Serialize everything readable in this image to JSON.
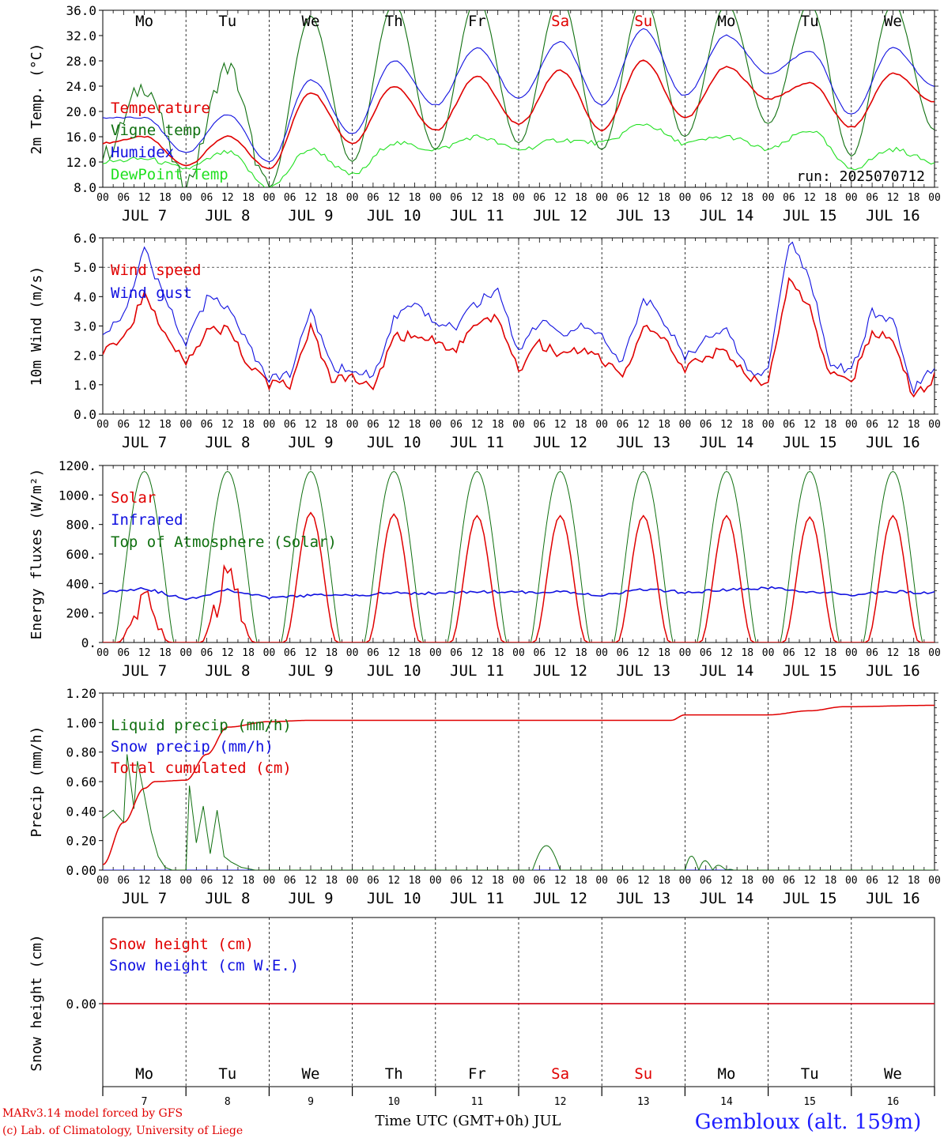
{
  "colors": {
    "red": "#e00000",
    "green": "#107010",
    "blue": "#1010e0",
    "lightgreen": "#20e020",
    "station": "#1e1eff"
  },
  "days": [
    {
      "abbr": "Mo",
      "date": "7",
      "weekend": false
    },
    {
      "abbr": "Tu",
      "date": "8",
      "weekend": false
    },
    {
      "abbr": "We",
      "date": "9",
      "weekend": false
    },
    {
      "abbr": "Th",
      "date": "10",
      "weekend": false
    },
    {
      "abbr": "Fr",
      "date": "11",
      "weekend": false
    },
    {
      "abbr": "Sa",
      "date": "12",
      "weekend": true
    },
    {
      "abbr": "Su",
      "date": "13",
      "weekend": true
    },
    {
      "abbr": "Mo",
      "date": "14",
      "weekend": false
    },
    {
      "abbr": "Tu",
      "date": "15",
      "weekend": false
    },
    {
      "abbr": "We",
      "date": "16",
      "weekend": false
    }
  ],
  "month": "JUL",
  "hour_ticks": [
    "00",
    "06",
    "12",
    "18"
  ],
  "x_title": "Time UTC (GMT+0h) JUL",
  "station": "Gembloux (alt. 159m)",
  "footer": [
    "MARv3.14 model forced by GFS",
    "(c) Lab. of Climatology, University of Liege"
  ],
  "chart_data": [
    {
      "type": "line",
      "ylabel": "2m Temp. (°C)",
      "ylim": [
        8,
        36
      ],
      "yticks": [
        "8.0",
        "12.0",
        "16.0",
        "20.0",
        "24.0",
        "28.0",
        "32.0",
        "36.0"
      ],
      "run_label": "run: 2025070712",
      "x_hours": [
        0,
        12,
        24,
        36,
        48,
        60,
        72,
        84,
        96,
        108,
        120,
        132,
        144,
        156,
        168,
        180,
        192,
        204,
        216,
        228,
        240
      ],
      "series": [
        {
          "name": "Temperature",
          "color": "red",
          "values": [
            15.0,
            16.0,
            11.5,
            16.0,
            11.0,
            23.0,
            15.0,
            24.0,
            17.0,
            25.5,
            18.0,
            26.5,
            17.0,
            28.0,
            19.0,
            27.0,
            22.0,
            24.5,
            17.5,
            26.0,
            21.5
          ]
        },
        {
          "name": "Vigne temp",
          "color": "green",
          "values": [
            13.0,
            24.0,
            9.0,
            27.0,
            8.0,
            35.0,
            12.0,
            37.0,
            14.0,
            38.0,
            15.0,
            38.0,
            14.0,
            38.0,
            16.0,
            37.0,
            18.0,
            37.0,
            13.0,
            37.0,
            17.0
          ]
        },
        {
          "name": "Humidex",
          "color": "blue",
          "values": [
            19.0,
            19.0,
            13.5,
            19.5,
            12.0,
            25.0,
            16.5,
            28.0,
            21.0,
            30.0,
            22.0,
            31.0,
            21.0,
            33.0,
            22.5,
            32.0,
            26.0,
            29.5,
            19.5,
            30.0,
            24.0
          ]
        },
        {
          "name": "DewPoint Temp",
          "color": "lightgreen",
          "values": [
            12.0,
            12.5,
            11.0,
            13.5,
            8.0,
            14.0,
            10.0,
            15.0,
            14.0,
            16.0,
            14.0,
            15.5,
            15.0,
            18.0,
            15.0,
            16.0,
            14.0,
            17.0,
            11.0,
            14.0,
            12.0
          ]
        }
      ]
    },
    {
      "type": "line",
      "ylabel": "10m Wind (m/s)",
      "ylim": [
        0,
        6
      ],
      "yticks": [
        "0.0",
        "1.0",
        "2.0",
        "3.0",
        "4.0",
        "5.0",
        "6.0"
      ],
      "ref_line": 5.0,
      "x_hours": [
        0,
        6,
        12,
        18,
        24,
        30,
        36,
        42,
        48,
        54,
        60,
        66,
        72,
        78,
        84,
        90,
        96,
        102,
        108,
        114,
        120,
        126,
        132,
        138,
        144,
        150,
        156,
        162,
        168,
        174,
        180,
        186,
        192,
        198,
        204,
        210,
        216,
        222,
        228,
        234,
        240
      ],
      "series": [
        {
          "name": "Wind speed",
          "color": "red",
          "values": [
            2.2,
            2.6,
            4.0,
            2.8,
            1.8,
            2.8,
            2.9,
            1.7,
            1.0,
            1.0,
            2.9,
            1.2,
            1.2,
            0.9,
            2.6,
            2.7,
            2.5,
            2.2,
            3.0,
            3.3,
            1.5,
            2.4,
            2.0,
            2.2,
            1.9,
            1.2,
            3.0,
            2.5,
            1.5,
            2.0,
            2.2,
            1.2,
            1.1,
            4.5,
            3.6,
            1.3,
            1.1,
            2.8,
            2.6,
            0.5,
            1.3
          ]
        },
        {
          "name": "Wind gust",
          "color": "blue",
          "values": [
            2.8,
            3.4,
            5.6,
            3.9,
            2.4,
            3.9,
            3.7,
            2.3,
            1.2,
            1.3,
            3.6,
            1.6,
            1.5,
            1.3,
            3.2,
            3.7,
            3.1,
            3.0,
            3.8,
            4.2,
            2.1,
            3.2,
            2.7,
            3.0,
            2.6,
            1.7,
            4.0,
            3.2,
            1.9,
            2.6,
            2.8,
            1.5,
            1.4,
            5.9,
            4.7,
            1.7,
            1.4,
            3.5,
            3.2,
            0.8,
            1.7
          ]
        }
      ]
    },
    {
      "type": "line",
      "ylabel": "Energy fluxes (W/m²)",
      "ylim": [
        0,
        1200
      ],
      "yticks": [
        "0.",
        "200.",
        "400.",
        "600.",
        "800.",
        "1000.",
        "1200."
      ],
      "solar_peaks": [
        420,
        650,
        880,
        870,
        860,
        860,
        860,
        860,
        850,
        860
      ],
      "toa_peak": 1160,
      "series": [
        {
          "name": "Solar",
          "color": "red"
        },
        {
          "name": "Infrared",
          "color": "blue",
          "x_hours": [
            0,
            12,
            24,
            36,
            48,
            60,
            72,
            84,
            96,
            108,
            120,
            132,
            144,
            156,
            168,
            180,
            192,
            204,
            216,
            228,
            240
          ],
          "values": [
            340,
            370,
            290,
            360,
            300,
            320,
            320,
            335,
            335,
            345,
            340,
            345,
            320,
            360,
            340,
            355,
            370,
            345,
            320,
            345,
            335
          ]
        },
        {
          "name": "Top of Atmosphere (Solar)",
          "color": "green"
        }
      ]
    },
    {
      "type": "line",
      "ylabel": "Precip (mm/h)",
      "ylim": [
        0,
        1.3
      ],
      "yticks": [
        "0.00",
        "0.20",
        "0.40",
        "0.60",
        "0.80",
        "1.00",
        "1.20"
      ],
      "series": [
        {
          "name": "Liquid precip (mm/h)",
          "color": "green",
          "x_hours": [
            0,
            3,
            6,
            7,
            9,
            10,
            12,
            14,
            16,
            18,
            20,
            24,
            25,
            27,
            29,
            31,
            33,
            35,
            37,
            40,
            44,
            46,
            48,
            240
          ],
          "values": [
            0.38,
            0.44,
            0.35,
            0.85,
            0.45,
            0.8,
            0.55,
            0.28,
            0.1,
            0.02,
            0.0,
            0.0,
            0.62,
            0.2,
            0.47,
            0.12,
            0.44,
            0.1,
            0.06,
            0.02,
            0.0,
            0.0,
            0.0,
            0.0
          ]
        },
        {
          "name": "Snow precip (mm/h)",
          "color": "blue",
          "x_hours": [
            0,
            240
          ],
          "values": [
            0.0,
            0.0
          ]
        },
        {
          "name": "Total cumulated (cm)",
          "color": "red",
          "x_hours": [
            0,
            6,
            12,
            15,
            24,
            30,
            36,
            48,
            60,
            72,
            132,
            164,
            168,
            192,
            204,
            214,
            240
          ],
          "values": [
            0.04,
            0.35,
            0.6,
            0.65,
            0.66,
            0.85,
            1.05,
            1.09,
            1.1,
            1.1,
            1.1,
            1.1,
            1.14,
            1.14,
            1.17,
            1.2,
            1.21
          ]
        }
      ]
    },
    {
      "type": "line",
      "ylabel": "Snow height (cm)",
      "yticks": [
        "0.00"
      ],
      "series": [
        {
          "name": "Snow height (cm)",
          "color": "red",
          "x_hours": [
            0,
            240
          ],
          "values": [
            0,
            0
          ]
        },
        {
          "name": "Snow height (cm W.E.)",
          "color": "blue",
          "x_hours": [
            0,
            240
          ],
          "values": [
            0,
            0
          ]
        }
      ]
    }
  ]
}
